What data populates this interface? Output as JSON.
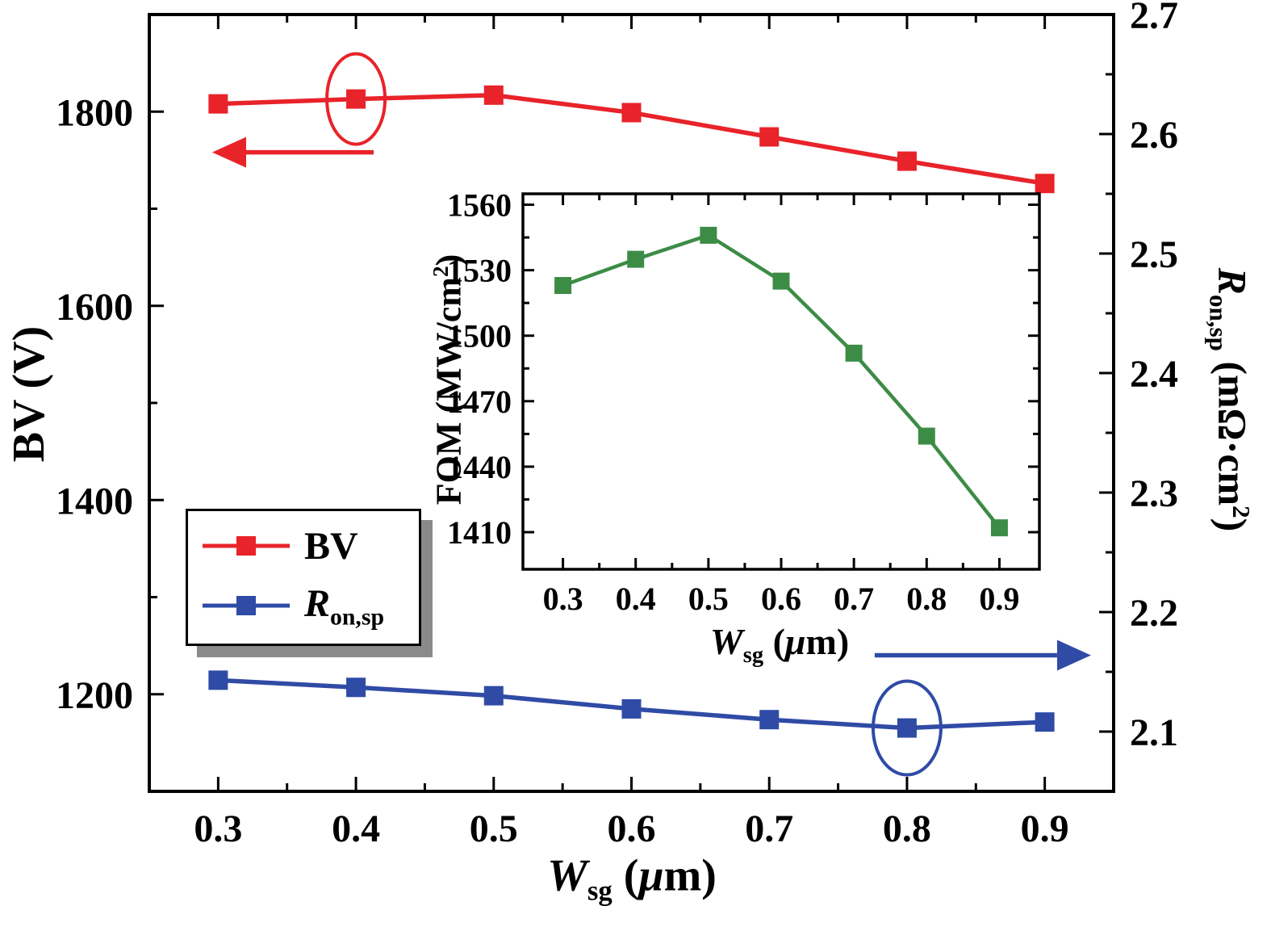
{
  "figure": {
    "background": "#ffffff",
    "frame_color": "#000000"
  },
  "axis_titles": {
    "left": "BV (V)",
    "right": {
      "symbol": "R",
      "subscript": "on,sp",
      "unit_pre": " (mΩ·cm",
      "unit_sup": "2",
      "unit_post": ")"
    },
    "x": {
      "symbol": "W",
      "subscript": "sg",
      "unit_pre": " (",
      "unit_mu": "μ",
      "unit_post": "m)"
    },
    "inset_y": {
      "pre": "FOM (MW/cm",
      "sup": "2",
      "post": ")"
    }
  },
  "legend": {
    "entries": [
      {
        "label": "BV"
      },
      {
        "symbol": "R",
        "subscript": "on,sp"
      }
    ]
  },
  "annotations": {
    "bv_arrow": {
      "direction": "left",
      "meaning": "BV is read on the left axis",
      "color": "#e8232a"
    },
    "bv_ellipse": {
      "marks_point_x": 0.4,
      "series": "BV",
      "color": "#e8232a"
    },
    "ron_arrow": {
      "direction": "right",
      "meaning": "Ron,sp is read on the right axis",
      "color": "#2f4ba6"
    },
    "ron_ellipse": {
      "marks_point_x": 0.8,
      "series": "R_on,sp",
      "color": "#2f4ba6"
    }
  },
  "chart_data": [
    {
      "id": "main",
      "type": "line",
      "x": [
        0.3,
        0.4,
        0.5,
        0.6,
        0.7,
        0.8,
        0.9
      ],
      "xlim": [
        0.25,
        0.95
      ],
      "x_ticks": [
        0.3,
        0.4,
        0.5,
        0.6,
        0.7,
        0.8,
        0.9
      ],
      "x_tick_labels": [
        "0.3",
        "0.4",
        "0.5",
        "0.6",
        "0.7",
        "0.8",
        "0.9"
      ],
      "xlabel": "W_sg (μm)",
      "left_axis": {
        "label": "BV (V)",
        "ylim": [
          1100,
          1900
        ],
        "ticks": [
          1200,
          1400,
          1600,
          1800
        ],
        "tick_labels": [
          "1200",
          "1400",
          "1600",
          "1800"
        ]
      },
      "right_axis": {
        "label": "R_on,sp (mΩ·cm²)",
        "ylim": [
          2.05,
          2.7
        ],
        "ticks": [
          2.1,
          2.2,
          2.3,
          2.4,
          2.5,
          2.6,
          2.7
        ],
        "tick_labels": [
          "2.1",
          "2.2",
          "2.3",
          "2.4",
          "2.5",
          "2.6",
          "2.7"
        ]
      },
      "series": [
        {
          "name": "BV",
          "axis": "left",
          "color": "#e8232a",
          "marker": "square",
          "values": [
            1808,
            1813,
            1817,
            1799,
            1774,
            1749,
            1726
          ]
        },
        {
          "name": "R_on,sp",
          "axis": "right",
          "color": "#2f4ba6",
          "marker": "square",
          "values": [
            2.143,
            2.137,
            2.13,
            2.119,
            2.11,
            2.103,
            2.108
          ]
        }
      ],
      "legend_position": "center-left",
      "grid": false
    },
    {
      "id": "inset",
      "type": "line",
      "x": [
        0.3,
        0.4,
        0.5,
        0.6,
        0.7,
        0.8,
        0.9
      ],
      "xlim": [
        0.245,
        0.955
      ],
      "x_ticks": [
        0.3,
        0.4,
        0.5,
        0.6,
        0.7,
        0.8,
        0.9
      ],
      "x_tick_labels": [
        "0.3",
        "0.4",
        "0.5",
        "0.6",
        "0.7",
        "0.8",
        "0.9"
      ],
      "xlabel": "W_sg (μm)",
      "ylabel": "FOM (MW/cm²)",
      "ylim": [
        1393,
        1565
      ],
      "y_ticks": [
        1410,
        1440,
        1470,
        1500,
        1530,
        1560
      ],
      "y_tick_labels": [
        "1410",
        "1440",
        "1470",
        "1500",
        "1530",
        "1560"
      ],
      "series": [
        {
          "name": "FOM",
          "color": "#3c8c45",
          "marker": "square",
          "values": [
            1523,
            1535,
            1546,
            1525,
            1492,
            1454,
            1412
          ]
        }
      ],
      "grid": false
    }
  ]
}
